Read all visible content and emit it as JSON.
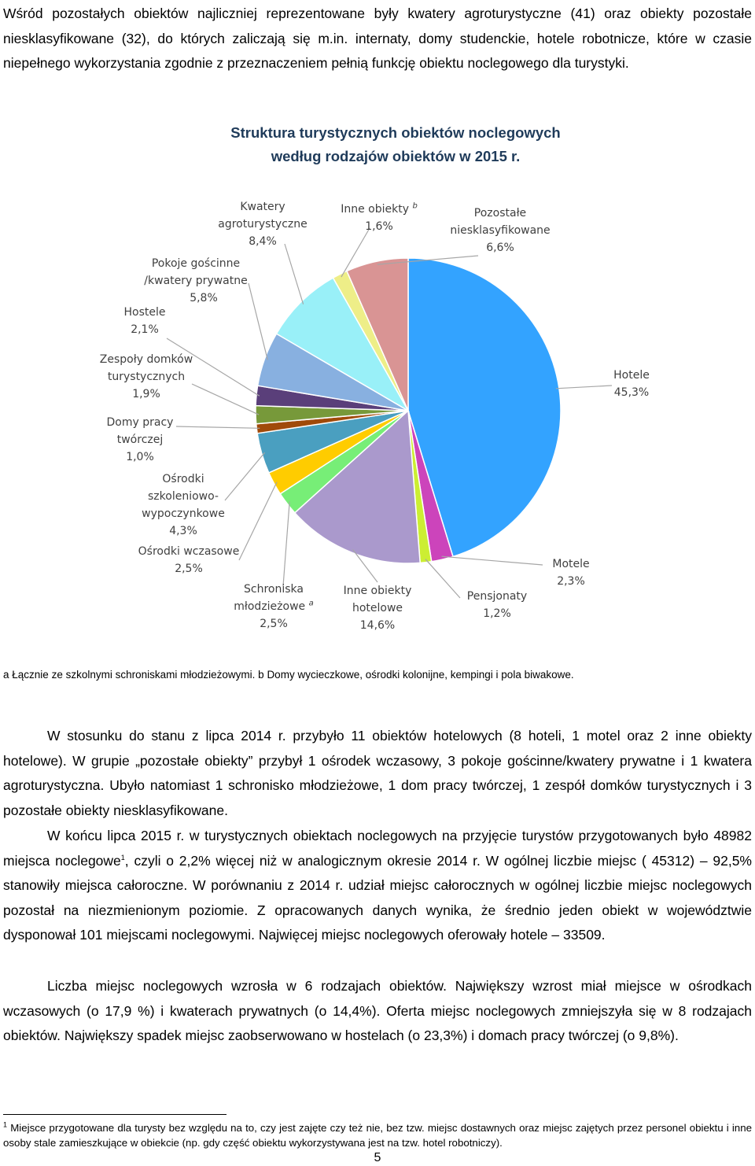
{
  "intro_paragraph": {
    "text": "Wśród pozostałych obiektów najliczniej reprezentowane były kwatery agroturystyczne (41) oraz obiekty pozostałe niesklasyfikowane (32), do których zaliczają się m.in. internaty, domy studenckie, hotele robotnicze, które w czasie niepełnego wykorzystania zgodnie z przeznaczeniem pełnią funkcję obiektu noclegowego dla turystyki."
  },
  "chart_data": {
    "type": "pie",
    "title_line1": "Struktura turystycznych obiektów noclegowych",
    "title_line2": "według rodzajów obiektów w 2015 r.",
    "slices": [
      {
        "label": "Hotele",
        "value": 45.3,
        "value_text": "45,3%",
        "color": "#33a3ff"
      },
      {
        "label": "Motele",
        "value": 2.3,
        "value_text": "2,3%",
        "color": "#cc44bb"
      },
      {
        "label": "Pensjonaty",
        "value": 1.2,
        "value_text": "1,2%",
        "color": "#ccee33"
      },
      {
        "label": "Inne obiekty hotelowe",
        "value": 14.6,
        "value_text": "14,6%",
        "color": "#aa99cc"
      },
      {
        "label": "Schroniska młodzieżowe",
        "sup": "a",
        "value": 2.5,
        "value_text": "2,5%",
        "color": "#77ee77"
      },
      {
        "label": "Ośrodki wczasowe",
        "value": 2.5,
        "value_text": "2,5%",
        "color": "#ffcc00"
      },
      {
        "label": "Ośrodki szkoleniowo-wypoczynkowe",
        "value": 4.3,
        "value_text": "4,3%",
        "color": "#4a9fc0"
      },
      {
        "label": "Domy pracy twórczej",
        "value": 1.0,
        "value_text": "1,0%",
        "color": "#a04a0a"
      },
      {
        "label": "Zespoły domków turystycznych",
        "value": 1.9,
        "value_text": "1,9%",
        "color": "#77993a"
      },
      {
        "label": "Hostele",
        "value": 2.1,
        "value_text": "2,1%",
        "color": "#5a3f7a"
      },
      {
        "label": "Pokoje gościnne /kwatery prywatne",
        "value": 5.8,
        "value_text": "5,8%",
        "color": "#88b0e0"
      },
      {
        "label": "Kwatery agroturystyczne",
        "value": 8.4,
        "value_text": "8,4%",
        "color": "#99f0f8"
      },
      {
        "label": "Inne obiekty",
        "sup": "b",
        "value": 1.6,
        "value_text": "1,6%",
        "color": "#eeee88"
      },
      {
        "label": "Pozostałe niesklasyfikowane",
        "value": 6.6,
        "value_text": "6,6%",
        "color": "#d99494"
      }
    ],
    "label_lines": {
      "hotele": [
        "Hotele",
        "45,3%"
      ],
      "motele": [
        "Motele",
        "2,3%"
      ],
      "pensjonaty": [
        "Pensjonaty",
        "1,2%"
      ],
      "inne_hotelowe": [
        "Inne obiekty",
        "hotelowe",
        "14,6%"
      ],
      "schroniska": [
        "Schroniska",
        "młodzieżowe",
        "2,5%"
      ],
      "wczasowe": [
        "Ośrodki wczasowe",
        "2,5%"
      ],
      "szkoleniowe": [
        "Ośrodki",
        "szkoleniowo-",
        "wypoczynkowe",
        "4,3%"
      ],
      "domy_pracy": [
        "Domy pracy",
        "twórczej",
        "1,0%"
      ],
      "zespoly": [
        "Zespoły domków",
        "turystycznych",
        "1,9%"
      ],
      "hostele": [
        "Hostele",
        "2,1%"
      ],
      "pokoje": [
        "Pokoje gościnne",
        "/kwatery prywatne",
        "5,8%"
      ],
      "kwatery": [
        "Kwatery",
        "agroturystyczne",
        "8,4%"
      ],
      "inne": [
        "Inne obiekty",
        "1,6%"
      ],
      "pozostale": [
        "Pozostałe",
        "niesklasyfikowane",
        "6,6%"
      ]
    }
  },
  "chart_notes": {
    "note_a_marker": "a",
    "note_a": "Łącznie ze szkolnymi schroniskami młodzieżowymi.",
    "note_b_marker": "b",
    "note_b": "Domy wycieczkowe, ośrodki kolonijne, kempingi i pola biwakowe."
  },
  "body_paragraphs": {
    "p1": "W stosunku do stanu z lipca 2014 r. przybyło 11 obiektów hotelowych (8 hoteli, 1 motel oraz 2 inne obiekty hotelowe). W grupie „pozostałe obiekty” przybył 1 ośrodek wczasowy, 3 pokoje gościnne/kwatery prywatne i 1 kwatera agroturystyczna. Ubyło natomiast 1 schronisko młodzieżowe, 1 dom pracy twórczej, 1 zespół domków turystycznych i 3 pozostałe obiekty niesklasyfikowane.",
    "p2_before_sup": "W końcu lipca 2015 r. w turystycznych obiektach noclegowych na przyjęcie turystów przygotowanych było 48982 miejsca noclegowe",
    "p2_sup": "1",
    "p2_after_sup": ", czyli o 2,2% więcej niż w analogicznym okresie 2014 r. W ogólnej liczbie miejsc ( 45312) – 92,5% stanowiły miejsca całoroczne. W porównaniu z 2014 r. udział miejsc całorocznych w ogólnej liczbie miejsc noclegowych pozostał na niezmienionym poziomie. Z opracowanych danych wynika, że średnio jeden obiekt w województwie dysponował 101 miejscami noclegowymi. Najwięcej miejsc noclegowych oferowały hotele – 33509.",
    "p3": "Liczba miejsc noclegowych wzrosła w 6 rodzajach obiektów. Największy wzrost miał miejsce w ośrodkach wczasowych (o 17,9 %) i kwaterach prywatnych (o 14,4%). Oferta miejsc noclegowych zmniejszyła się w 8 rodzajach obiektów. Największy spadek miejsc zaobserwowano w hostelach (o 23,3%) i domach pracy twórczej (o 9,8%)."
  },
  "footnote": {
    "marker": "1",
    "text": "Miejsce przygotowane dla turysty bez względu na to, czy jest zajęte czy też nie, bez tzw. miejsc dostawnych oraz miejsc zajętych przez personel obiektu i inne osoby stale zamieszkujące w obiekcie (np. gdy część obiektu wykorzystywana jest na tzw. hotel robotniczy)."
  },
  "page_number": "5"
}
